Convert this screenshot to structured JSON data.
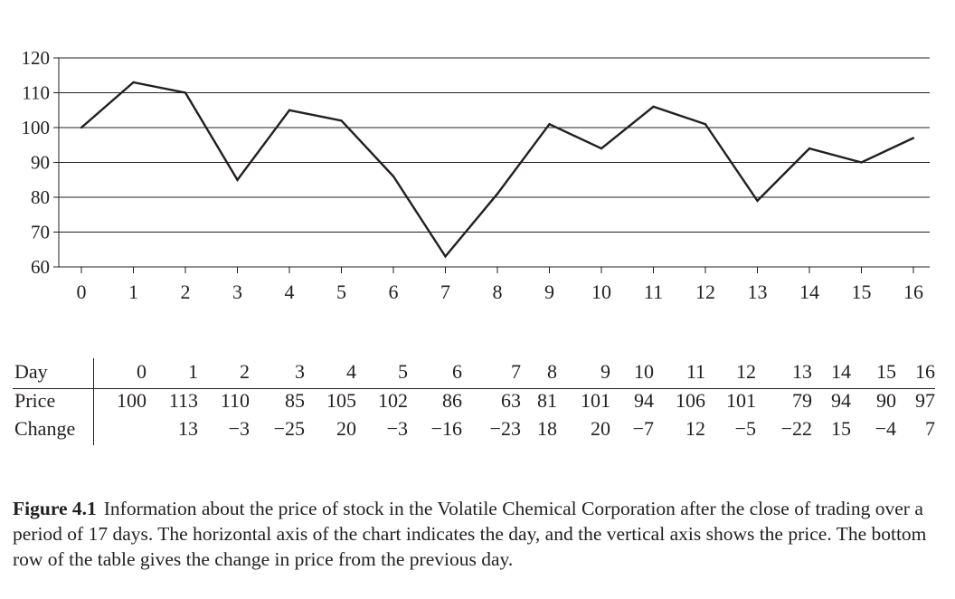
{
  "chart_data": {
    "type": "line",
    "x": [
      0,
      1,
      2,
      3,
      4,
      5,
      6,
      7,
      8,
      9,
      10,
      11,
      12,
      13,
      14,
      15,
      16
    ],
    "y": [
      100,
      113,
      110,
      85,
      105,
      102,
      86,
      63,
      81,
      101,
      94,
      106,
      101,
      79,
      94,
      90,
      97
    ],
    "ylim": [
      60,
      120
    ],
    "xlim": [
      0,
      16
    ],
    "yticks": [
      60,
      70,
      80,
      90,
      100,
      110,
      120
    ],
    "xticks": [
      0,
      1,
      2,
      3,
      4,
      5,
      6,
      7,
      8,
      9,
      10,
      11,
      12,
      13,
      14,
      15,
      16
    ],
    "grid": "horizontal",
    "line_color": "#231f20"
  },
  "table": {
    "labels": [
      "Day",
      "Price",
      "Change"
    ],
    "day": [
      "0",
      "1",
      "2",
      "3",
      "4",
      "5",
      "6",
      "7",
      "8",
      "9",
      "10",
      "11",
      "12",
      "13",
      "14",
      "15",
      "16"
    ],
    "price": [
      "100",
      "113",
      "110",
      "85",
      "105",
      "102",
      "86",
      "63",
      "81",
      "101",
      "94",
      "106",
      "101",
      "79",
      "94",
      "90",
      "97"
    ],
    "change": [
      "",
      "13",
      "−3",
      "−25",
      "20",
      "−3",
      "−16",
      "−23",
      "18",
      "20",
      "−7",
      "12",
      "−5",
      "−22",
      "15",
      "−4",
      "7"
    ]
  },
  "caption": {
    "figure_label": "Figure 4.1",
    "text": "Information about the price of stock in the Volatile Chemical Corporation after the close of trading over a period of 17 days. The horizontal axis of the chart indicates the day, and the vertical axis shows the price. The bottom row of the table gives the change in price from the previous day."
  }
}
